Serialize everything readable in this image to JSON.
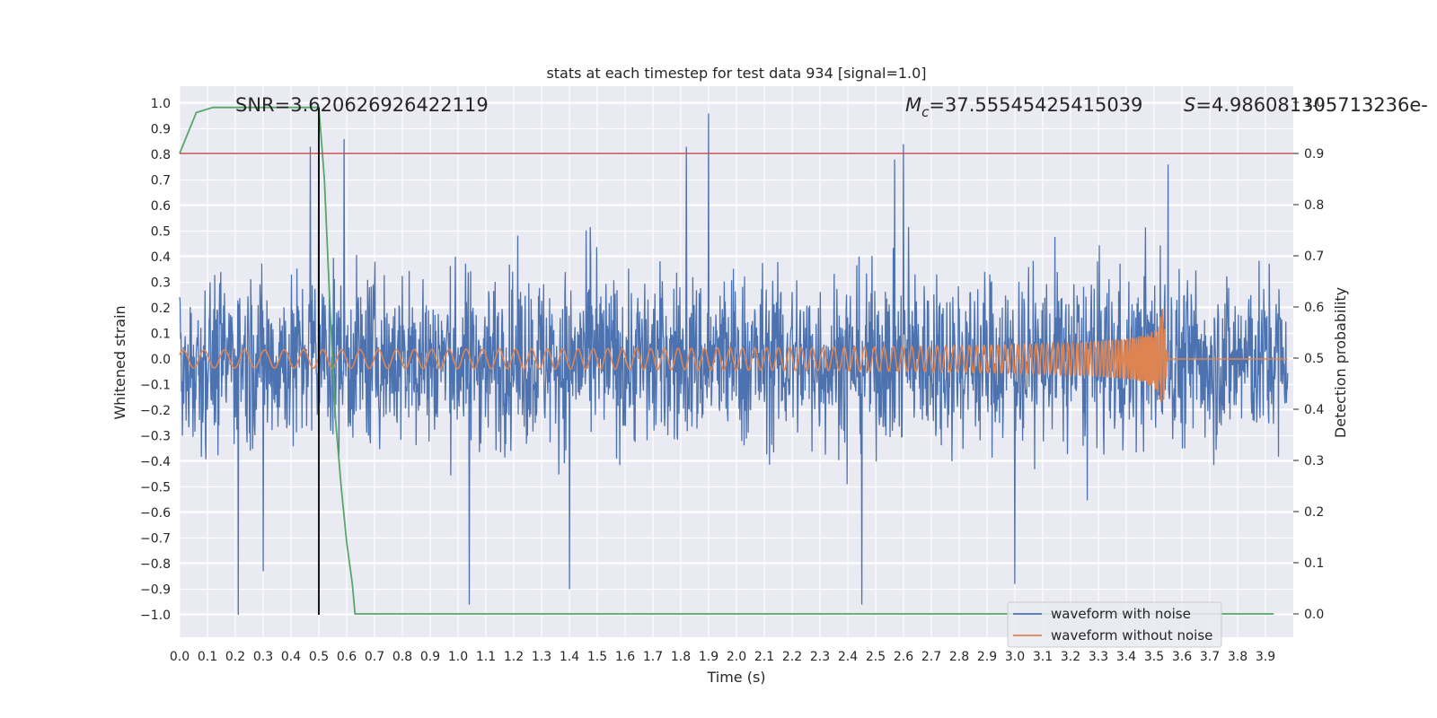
{
  "chart_data": {
    "type": "line",
    "title": "stats at each timestep for test data 934 [signal=1.0]",
    "xlabel": "Time (s)",
    "ylabel": "Whitened strain",
    "y2label": "Detection probability",
    "xlim": [
      0.0,
      4.0
    ],
    "ylim": [
      -1.1,
      1.1
    ],
    "y2lim": [
      -0.05,
      1.05
    ],
    "xticks": [
      "0.0",
      "0.1",
      "0.2",
      "0.3",
      "0.4",
      "0.5",
      "0.6",
      "0.7",
      "0.8",
      "0.9",
      "1.0",
      "1.1",
      "1.2",
      "1.3",
      "1.4",
      "1.5",
      "1.6",
      "1.7",
      "1.8",
      "1.9",
      "2.0",
      "2.1",
      "2.2",
      "2.3",
      "2.4",
      "2.5",
      "2.6",
      "2.7",
      "2.8",
      "2.9",
      "3.0",
      "3.1",
      "3.2",
      "3.3",
      "3.4",
      "3.5",
      "3.6",
      "3.7",
      "3.8",
      "3.9"
    ],
    "yticks": [
      "1.0",
      "0.9",
      "0.8",
      "0.7",
      "0.6",
      "0.5",
      "0.4",
      "0.3",
      "0.2",
      "0.1",
      "0.0",
      "−0.1",
      "−0.2",
      "−0.3",
      "−0.4",
      "−0.5",
      "−0.6",
      "−0.7",
      "−0.8",
      "−0.9",
      "−1.0"
    ],
    "y2ticks": [
      "0.0",
      "0.1",
      "0.2",
      "0.3",
      "0.4",
      "0.5",
      "0.6",
      "0.7",
      "0.8",
      "0.9",
      "1.0"
    ],
    "grid": true,
    "legend_position": "lower-right",
    "annotations": {
      "snr": "SNR=3.620626926422119",
      "mc_symbol": "M",
      "mc_sub": "c",
      "mc_value": "=37.55545425415039",
      "s_symbol": "S",
      "s_value": "=4.986081305713236e-"
    },
    "series": [
      {
        "name": "waveform with noise",
        "color": "#4c72b0",
        "axis": "left",
        "kind": "noise",
        "amplitude": 0.45,
        "peaks": [
          [
            0.47,
            0.83
          ],
          [
            0.5,
            0.9
          ],
          [
            0.59,
            0.86
          ],
          [
            1.82,
            0.83
          ],
          [
            1.9,
            0.96
          ],
          [
            2.6,
            0.84
          ],
          [
            3.55,
            0.76
          ],
          [
            0.21,
            -1.0
          ],
          [
            1.04,
            -0.96
          ],
          [
            2.45,
            -0.96
          ],
          [
            0.3,
            -0.83
          ],
          [
            1.4,
            -0.9
          ],
          [
            3.0,
            -0.88
          ]
        ]
      },
      {
        "name": "waveform without noise",
        "color": "#dd8452",
        "axis": "left",
        "kind": "chirp",
        "t_merge": 3.53,
        "peak_amplitude": 0.2
      },
      {
        "color": "#55a868",
        "axis": "right",
        "x": [
          0.0,
          0.06,
          0.12,
          0.2,
          0.3,
          0.4,
          0.5,
          0.52,
          0.54,
          0.56,
          0.58,
          0.6,
          0.62,
          0.63,
          3.93
        ],
        "y": [
          0.9,
          0.98,
          0.99,
          0.99,
          0.99,
          0.99,
          0.99,
          0.85,
          0.6,
          0.38,
          0.25,
          0.14,
          0.06,
          0.0,
          0.0
        ]
      }
    ],
    "threshold_y2": 0.9,
    "threshold_color": "#c44e52",
    "vline_x": 0.5,
    "vline_color": "#000000"
  }
}
